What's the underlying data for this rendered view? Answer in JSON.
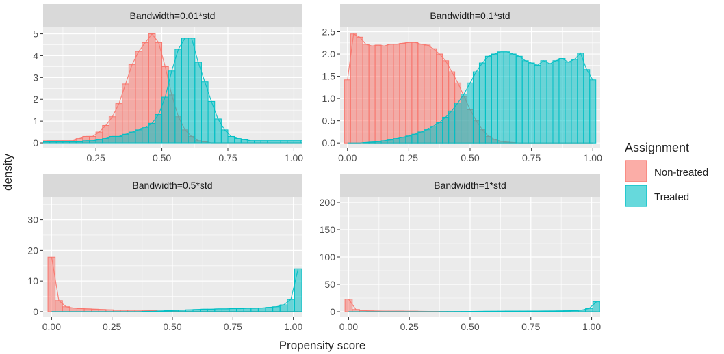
{
  "figure": {
    "xlabel": "Propensity score",
    "ylabel": "density"
  },
  "legend": {
    "title": "Assignment",
    "items": [
      {
        "label": "Non-treated",
        "fill": "#F8766D",
        "stroke": "#F8766D"
      },
      {
        "label": "Treated",
        "fill": "#00BFC4",
        "stroke": "#00BFC4"
      }
    ]
  },
  "colors": {
    "panel_bg": "#EBEBEB",
    "strip_bg": "#D9D9D9",
    "grid": "#FFFFFF",
    "axis_text": "#4D4D4D",
    "non_treated": "#F8766D",
    "treated": "#00BFC4"
  },
  "chart_data": [
    {
      "type": "histogram",
      "title": "Bandwidth=0.01*std",
      "xlim": [
        0.05,
        1.03
      ],
      "ylim": [
        -0.25,
        5.3
      ],
      "xticks": [
        0.25,
        0.5,
        0.75,
        1.0
      ],
      "xtick_labels": [
        "0.25",
        "0.50",
        "0.75",
        "1.00"
      ],
      "yticks": [
        0,
        1,
        2,
        3,
        4,
        5
      ],
      "ytick_labels": [
        "0",
        "1",
        "2",
        "3",
        "4",
        "5"
      ],
      "bin_start": 0.05,
      "bin_width": 0.025,
      "series": [
        {
          "name": "Non-treated",
          "values": [
            0.1,
            0.1,
            0.1,
            0.1,
            0.1,
            0.2,
            0.3,
            0.3,
            0.5,
            0.8,
            1.2,
            1.8,
            2.7,
            3.6,
            4.2,
            4.6,
            5.0,
            4.6,
            3.5,
            2.2,
            1.2,
            0.6,
            0.3,
            0.1,
            0.05,
            0,
            0,
            0,
            0,
            0,
            0,
            0,
            0,
            0,
            0,
            0,
            0,
            0,
            0,
            0
          ]
        },
        {
          "name": "Treated",
          "values": [
            0.05,
            0.05,
            0.05,
            0.05,
            0.05,
            0.05,
            0.1,
            0.1,
            0.15,
            0.2,
            0.3,
            0.3,
            0.4,
            0.5,
            0.6,
            0.7,
            0.9,
            1.3,
            2.1,
            3.3,
            4.3,
            4.8,
            4.8,
            3.7,
            2.8,
            1.9,
            1.1,
            0.6,
            0.3,
            0.2,
            0.15,
            0.1,
            0.1,
            0.1,
            0.1,
            0.1,
            0.1,
            0.1,
            0.1,
            0.1
          ]
        }
      ]
    },
    {
      "type": "histogram",
      "title": "Bandwidth=0.1*std",
      "xlim": [
        -0.03,
        1.03
      ],
      "ylim": [
        -0.12,
        2.6
      ],
      "xticks": [
        0,
        0.25,
        0.5,
        0.75,
        1.0
      ],
      "xtick_labels": [
        "0.00",
        "0.25",
        "0.50",
        "0.75",
        "1.00"
      ],
      "yticks": [
        0,
        0.5,
        1.0,
        1.5,
        2.0,
        2.5
      ],
      "ytick_labels": [
        "0.0",
        "0.5",
        "1.0",
        "1.5",
        "2.0",
        "2.5"
      ],
      "bin_start": -0.0125,
      "bin_width": 0.025,
      "series": [
        {
          "name": "Non-treated",
          "values": [
            1.42,
            2.45,
            2.38,
            2.22,
            2.18,
            2.2,
            2.18,
            2.22,
            2.22,
            2.24,
            2.26,
            2.26,
            2.22,
            2.2,
            2.12,
            2.0,
            1.85,
            1.6,
            1.35,
            1.05,
            0.75,
            0.5,
            0.3,
            0.15,
            0.08,
            0.04,
            0.02,
            0.01,
            0,
            0,
            0,
            0,
            0,
            0,
            0,
            0,
            0,
            0,
            0,
            0,
            0
          ]
        },
        {
          "name": "Treated",
          "values": [
            0,
            0,
            0,
            0.01,
            0.02,
            0.03,
            0.05,
            0.07,
            0.1,
            0.13,
            0.16,
            0.2,
            0.25,
            0.3,
            0.38,
            0.46,
            0.58,
            0.72,
            0.9,
            1.1,
            1.35,
            1.6,
            1.8,
            1.95,
            2.0,
            2.05,
            2.05,
            2.0,
            1.95,
            1.85,
            1.8,
            1.75,
            1.85,
            1.78,
            1.85,
            1.9,
            1.82,
            1.88,
            2.02,
            1.65,
            1.42
          ]
        }
      ]
    },
    {
      "type": "histogram",
      "title": "Bandwidth=0.5*std",
      "xlim": [
        -0.035,
        1.035
      ],
      "ylim": [
        -1.8,
        37.5
      ],
      "xticks": [
        0,
        0.25,
        0.5,
        0.75,
        1.0
      ],
      "xtick_labels": [
        "0.00",
        "0.25",
        "0.50",
        "0.75",
        "1.00"
      ],
      "yticks": [
        0,
        10,
        20,
        30
      ],
      "ytick_labels": [
        "0",
        "10",
        "20",
        "30"
      ],
      "bin_start": -0.015,
      "bin_width": 0.03,
      "series": [
        {
          "name": "Non-treated",
          "values": [
            17.8,
            3.6,
            1.6,
            1.2,
            1.0,
            0.9,
            0.8,
            0.7,
            0.6,
            0.5,
            0.5,
            0.5,
            0.5,
            0.4,
            0.3,
            0.2,
            0.15,
            0.1,
            0.05,
            0.05,
            0.05,
            0.05,
            0.05,
            0.05,
            0.05,
            0.05,
            0.05,
            0.05,
            0.05,
            0.05,
            0.05,
            0.05,
            0.05,
            0.05,
            0.05
          ]
        },
        {
          "name": "Treated",
          "values": [
            0,
            0,
            0,
            0,
            0,
            0,
            0,
            0,
            0,
            0,
            0,
            0,
            0,
            0.1,
            0.1,
            0.2,
            0.3,
            0.4,
            0.5,
            0.6,
            0.7,
            0.8,
            0.8,
            0.9,
            0.9,
            1.0,
            1.0,
            1.1,
            1.1,
            1.2,
            1.4,
            1.6,
            2.2,
            4.0,
            14.0
          ]
        }
      ]
    },
    {
      "type": "histogram",
      "title": "Bandwidth=1*std",
      "xlim": [
        -0.035,
        1.035
      ],
      "ylim": [
        -10,
        210
      ],
      "xticks": [
        0,
        0.25,
        0.5,
        0.75,
        1.0
      ],
      "xtick_labels": [
        "0.00",
        "0.25",
        "0.50",
        "0.75",
        "1.00"
      ],
      "yticks": [
        0,
        50,
        100,
        150,
        200
      ],
      "ytick_labels": [
        "0",
        "50",
        "100",
        "150",
        "200"
      ],
      "bin_start": -0.015,
      "bin_width": 0.03,
      "series": [
        {
          "name": "Non-treated",
          "values": [
            23,
            4,
            2,
            1.5,
            1.2,
            1,
            1,
            1,
            0.8,
            0.8,
            0.6,
            0.5,
            0.5,
            0.4,
            0.3,
            0.2,
            0.1,
            0.1,
            0.05,
            0.05,
            0.05,
            0.05,
            0.05,
            0.05,
            0.05,
            0.05,
            0.05,
            0.05,
            0.05,
            0.05,
            0.05,
            0.05,
            0.05,
            0.05,
            0.05
          ]
        },
        {
          "name": "Treated",
          "values": [
            0,
            0,
            0,
            0,
            0,
            0,
            0,
            0,
            0,
            0,
            0,
            0,
            0,
            0.1,
            0.2,
            0.3,
            0.4,
            0.5,
            0.6,
            0.7,
            0.8,
            0.9,
            1,
            1,
            1,
            1.1,
            1.1,
            1.2,
            1.3,
            1.4,
            1.6,
            2,
            3,
            6,
            18
          ]
        }
      ]
    }
  ]
}
